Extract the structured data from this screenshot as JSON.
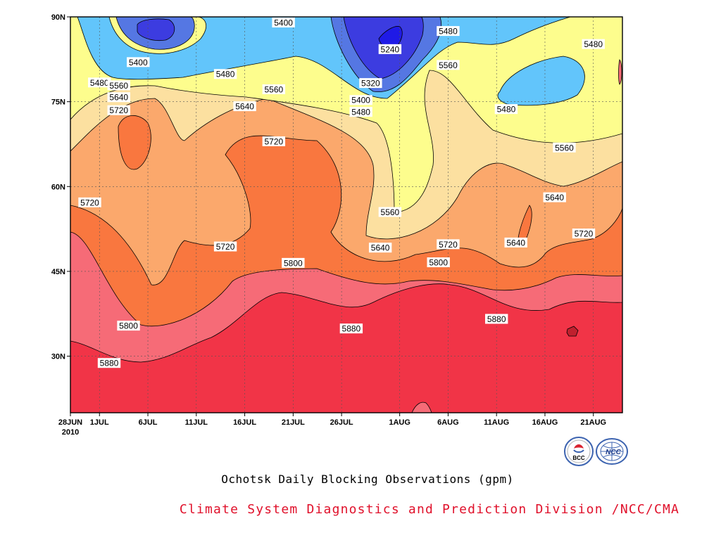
{
  "chart_data": {
    "type": "heatmap",
    "title": "Ochotsk Daily Blocking Observations (gpm)",
    "x_tick_labels": [
      "28JUN",
      "1JUL",
      "6JUL",
      "11JUL",
      "16JUL",
      "21JUL",
      "26JUL",
      "1AUG",
      "6AUG",
      "11AUG",
      "16AUG",
      "21AUG"
    ],
    "x_ticks": [
      "2010-06-28",
      "2010-07-01",
      "2010-07-06",
      "2010-07-11",
      "2010-07-16",
      "2010-07-21",
      "2010-07-26",
      "2010-08-01",
      "2010-08-06",
      "2010-08-11",
      "2010-08-16",
      "2010-08-21"
    ],
    "x_year_label": "2010",
    "xlim": [
      "2010-06-28",
      "2010-08-24"
    ],
    "y_tick_labels": [
      "30N",
      "45N",
      "60N",
      "75N",
      "90N"
    ],
    "y_ticks": [
      30,
      45,
      60,
      75,
      90
    ],
    "ylim": [
      20,
      90
    ],
    "grid": true,
    "contour_levels": [
      5240,
      5320,
      5400,
      5480,
      5560,
      5640,
      5720,
      5800,
      5880
    ],
    "fill_colors": {
      "5160": "#1f1ae6",
      "5240": "#3c3ce0",
      "5320": "#5577e3",
      "5400": "#62c5fb",
      "5480": "#fdfd8d",
      "5560": "#fce0a0",
      "5640": "#fba86c",
      "5720": "#f9773f",
      "5800": "#f66b77",
      "5880": "#f13447"
    },
    "contour_labels": [
      {
        "value": "5400",
        "date": "2010-07-20",
        "lat": 89.0
      },
      {
        "value": "5400",
        "date": "2010-07-05",
        "lat": 82.0
      },
      {
        "value": "5480",
        "date": "2010-07-01",
        "lat": 78.4
      },
      {
        "value": "5480",
        "date": "2010-07-14",
        "lat": 79.9
      },
      {
        "value": "5560",
        "date": "2010-07-03",
        "lat": 77.9
      },
      {
        "value": "5560",
        "date": "2010-07-19",
        "lat": 77.2
      },
      {
        "value": "5640",
        "date": "2010-07-03",
        "lat": 75.8
      },
      {
        "value": "5640",
        "date": "2010-07-16",
        "lat": 74.2
      },
      {
        "value": "5720",
        "date": "2010-07-03",
        "lat": 73.5
      },
      {
        "value": "5720",
        "date": "2010-07-19",
        "lat": 68.0
      },
      {
        "value": "5720",
        "date": "2010-06-30",
        "lat": 57.2
      },
      {
        "value": "5720",
        "date": "2010-07-14",
        "lat": 49.4
      },
      {
        "value": "5240",
        "date": "2010-07-31",
        "lat": 84.3
      },
      {
        "value": "5320",
        "date": "2010-07-29",
        "lat": 78.3
      },
      {
        "value": "5400",
        "date": "2010-07-28",
        "lat": 75.3
      },
      {
        "value": "5480",
        "date": "2010-07-28",
        "lat": 73.2
      },
      {
        "value": "5480",
        "date": "2010-08-06",
        "lat": 87.5
      },
      {
        "value": "5480",
        "date": "2010-08-21",
        "lat": 85.2
      },
      {
        "value": "5480",
        "date": "2010-08-12",
        "lat": 73.7
      },
      {
        "value": "5560",
        "date": "2010-08-06",
        "lat": 81.5
      },
      {
        "value": "5560",
        "date": "2010-07-31",
        "lat": 55.5
      },
      {
        "value": "5560",
        "date": "2010-08-18",
        "lat": 66.9
      },
      {
        "value": "5640",
        "date": "2010-07-30",
        "lat": 49.2
      },
      {
        "value": "5640",
        "date": "2010-08-17",
        "lat": 58.1
      },
      {
        "value": "5640",
        "date": "2010-08-13",
        "lat": 50.1
      },
      {
        "value": "5720",
        "date": "2010-08-06",
        "lat": 49.8
      },
      {
        "value": "5720",
        "date": "2010-08-20",
        "lat": 51.7
      },
      {
        "value": "5800",
        "date": "2010-07-21",
        "lat": 46.5
      },
      {
        "value": "5800",
        "date": "2010-08-05",
        "lat": 46.6
      },
      {
        "value": "5800",
        "date": "2010-07-04",
        "lat": 35.4
      },
      {
        "value": "5880",
        "date": "2010-07-27",
        "lat": 34.9
      },
      {
        "value": "5880",
        "date": "2010-08-11",
        "lat": 36.6
      },
      {
        "value": "5880",
        "date": "2010-07-02",
        "lat": 28.8
      }
    ]
  },
  "credit": "Climate System Diagnostics and Prediction Division /NCC/CMA",
  "logos": [
    {
      "icon": "bcc-logo-icon",
      "text": "BCC"
    },
    {
      "icon": "ncc-logo-icon",
      "text": "NCC"
    }
  ]
}
